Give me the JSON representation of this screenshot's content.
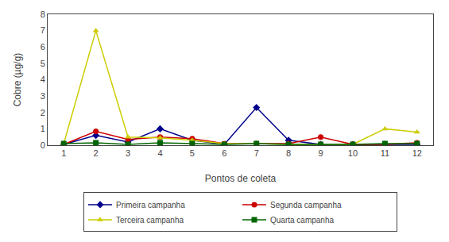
{
  "chart_data": {
    "type": "line",
    "x_label": "Pontos de coleta",
    "y_label": "Cobre (µg/g)",
    "x": [
      1,
      2,
      3,
      4,
      5,
      6,
      7,
      8,
      9,
      10,
      11,
      12
    ],
    "xlim": [
      0.5,
      12.5
    ],
    "xticks": [
      1,
      2,
      3,
      4,
      5,
      6,
      7,
      8,
      9,
      10,
      11,
      12
    ],
    "ylim": [
      0,
      8
    ],
    "yticks": [
      0,
      1,
      2,
      3,
      4,
      5,
      6,
      7,
      8
    ],
    "grid": false,
    "legend": "bottom",
    "series": [
      {
        "name": "Primeira campanha",
        "color": "#00008B",
        "marker": "diamond",
        "values": [
          0.05,
          0.6,
          0.2,
          1.0,
          0.3,
          0.05,
          2.3,
          0.3,
          0.05,
          0.05,
          0.05,
          0.05
        ]
      },
      {
        "name": "Segunda campanha",
        "color": "#CC0000",
        "marker": "circle",
        "values": [
          0.05,
          0.85,
          0.35,
          0.5,
          0.4,
          0.1,
          0.1,
          0.1,
          0.5,
          0.05,
          0.05,
          0.15
        ]
      },
      {
        "name": "Terceira campanha",
        "color": "#CCCC00",
        "marker": "triangle",
        "values": [
          0.1,
          7.0,
          0.5,
          0.45,
          0.3,
          0.1,
          0.1,
          0.05,
          0.05,
          0.05,
          1.0,
          0.8
        ]
      },
      {
        "name": "Quarta campanha",
        "color": "#006400",
        "marker": "square",
        "values": [
          0.1,
          0.15,
          0.05,
          0.15,
          0.1,
          0.05,
          0.1,
          0.05,
          0.05,
          0.05,
          0.1,
          0.1
        ]
      }
    ]
  }
}
